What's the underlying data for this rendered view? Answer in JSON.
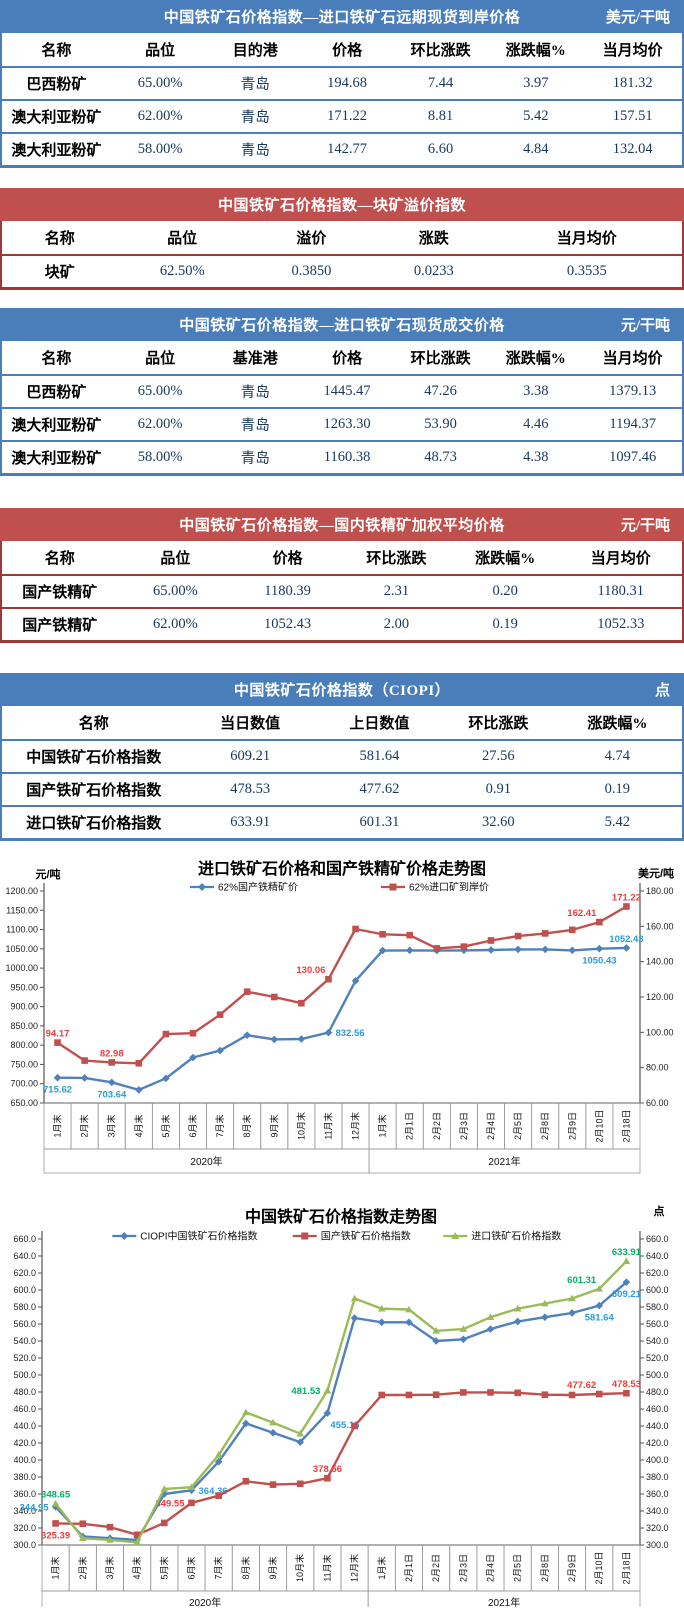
{
  "tables": [
    {
      "title": "中国铁矿石价格指数—进口铁矿石远期现货到岸价格",
      "unit": "美元/干吨",
      "theme": "blue",
      "headers": [
        "名称",
        "品位",
        "目的港",
        "价格",
        "环比涨跌",
        "涨跌幅%",
        "当月均价"
      ],
      "rows": [
        [
          "巴西粉矿",
          "65.00%",
          "青岛",
          "194.68",
          "7.44",
          "3.97",
          "181.32"
        ],
        [
          "澳大利亚粉矿",
          "62.00%",
          "青岛",
          "171.22",
          "8.81",
          "5.42",
          "157.51"
        ],
        [
          "澳大利亚粉矿",
          "58.00%",
          "青岛",
          "142.77",
          "6.60",
          "4.84",
          "132.04"
        ]
      ]
    },
    {
      "title": "中国铁矿石价格指数—块矿溢价指数",
      "unit": "",
      "theme": "red",
      "headers": [
        "名称",
        "品位",
        "溢价",
        "涨跌",
        "当月均价"
      ],
      "rows": [
        [
          "块矿",
          "62.50%",
          "0.3850",
          "0.0233",
          "0.3535"
        ]
      ]
    },
    {
      "title": "中国铁矿石价格指数—进口铁矿石现货成交价格",
      "unit": "元/干吨",
      "theme": "blue",
      "headers": [
        "名称",
        "品位",
        "基准港",
        "价格",
        "环比涨跌",
        "涨跌幅%",
        "当月均价"
      ],
      "rows": [
        [
          "巴西粉矿",
          "65.00%",
          "青岛",
          "1445.47",
          "47.26",
          "3.38",
          "1379.13"
        ],
        [
          "澳大利亚粉矿",
          "62.00%",
          "青岛",
          "1263.30",
          "53.90",
          "4.46",
          "1194.37"
        ],
        [
          "澳大利亚粉矿",
          "58.00%",
          "青岛",
          "1160.38",
          "48.73",
          "4.38",
          "1097.46"
        ]
      ]
    },
    {
      "title": "中国铁矿石价格指数—国内铁精矿加权平均价格",
      "unit": "元/干吨",
      "theme": "red",
      "headers": [
        "名称",
        "品位",
        "价格",
        "环比涨跌",
        "涨跌幅%",
        "当月均价"
      ],
      "rows": [
        [
          "国产铁精矿",
          "65.00%",
          "1180.39",
          "2.31",
          "0.20",
          "1180.31"
        ],
        [
          "国产铁精矿",
          "62.00%",
          "1052.43",
          "2.00",
          "0.19",
          "1052.33"
        ]
      ]
    },
    {
      "title": "中国铁矿石价格指数（CIOPI）",
      "unit": "点",
      "theme": "blue",
      "headers": [
        "名称",
        "当日数值",
        "上日数值",
        "环比涨跌",
        "涨跌幅%"
      ],
      "rows": [
        [
          "中国铁矿石价格指数",
          "609.21",
          "581.64",
          "27.56",
          "4.74"
        ],
        [
          "国产铁矿石价格指数",
          "478.53",
          "477.62",
          "0.91",
          "0.19"
        ],
        [
          "进口铁矿石价格指数",
          "633.91",
          "601.31",
          "32.60",
          "5.42"
        ]
      ]
    }
  ],
  "chart_data": [
    {
      "type": "line",
      "title": "进口铁矿石价格和国产铁精矿价格走势图",
      "left_axis": {
        "label": "元/吨",
        "min": 650,
        "max": 1200,
        "step": 50,
        "decimals": 2
      },
      "right_axis": {
        "label": "美元/吨",
        "min": 60,
        "max": 180,
        "step": 20,
        "decimals": 2
      },
      "categories": [
        "1月末",
        "2月末",
        "3月末",
        "4月末",
        "5月末",
        "6月末",
        "7月末",
        "8月末",
        "9月末",
        "10月末",
        "11月末",
        "12月末",
        "1月末",
        "2月1日",
        "2月2日",
        "2月3日",
        "2月4日",
        "2月5日",
        "2月8日",
        "2月9日",
        "2月10日",
        "2月18日"
      ],
      "year_groups": [
        {
          "label": "2020年",
          "span": 12
        },
        {
          "label": "2021年",
          "span": 10
        }
      ],
      "grid": false,
      "legend_position": "top",
      "series": [
        {
          "name": "62%国产铁精矿价",
          "color": "#4F81BD",
          "label_color": "#2E9BD6",
          "marker": "diamond",
          "axis": "left",
          "values": [
            715.62,
            715.0,
            703.64,
            684.0,
            714.0,
            768.0,
            786.0,
            826.0,
            815.0,
            816.0,
            832.56,
            967.0,
            1045.5,
            1046.0,
            1045.5,
            1046.0,
            1047.0,
            1048.5,
            1048.5,
            1046.0,
            1050.43,
            1052.43
          ],
          "labels": [
            {
              "i": 0,
              "t": "715.62",
              "pos": "below"
            },
            {
              "i": 2,
              "t": "703.64",
              "pos": "below"
            },
            {
              "i": 10,
              "t": "832.56",
              "pos": "right"
            },
            {
              "i": 20,
              "t": "1050.43",
              "pos": "below"
            },
            {
              "i": 21,
              "t": "1052.43",
              "pos": "above"
            }
          ]
        },
        {
          "name": "62%进口矿到岸价",
          "color": "#C0504D",
          "label_color": "#F03C3C",
          "marker": "square",
          "axis": "right",
          "values": [
            94.17,
            84.0,
            82.98,
            82.5,
            99.0,
            99.5,
            110.0,
            123.0,
            120.0,
            116.5,
            130.06,
            158.5,
            155.5,
            155.0,
            147.5,
            148.5,
            152.0,
            154.5,
            156.0,
            158.0,
            162.41,
            171.22
          ],
          "labels": [
            {
              "i": 0,
              "t": "94.17",
              "pos": "above"
            },
            {
              "i": 2,
              "t": "82.98",
              "pos": "above"
            },
            {
              "i": 10,
              "t": "130.06",
              "pos": "above-left"
            },
            {
              "i": 20,
              "t": "162.41",
              "pos": "above-left"
            },
            {
              "i": 21,
              "t": "171.22",
              "pos": "above"
            }
          ]
        }
      ]
    },
    {
      "type": "line",
      "title": "中国铁矿石价格指数走势图",
      "left_axis": {
        "label": "",
        "min": 300,
        "max": 660,
        "step": 20,
        "decimals": 1
      },
      "right_axis": {
        "label": "点",
        "min": 300,
        "max": 660,
        "step": 20,
        "decimals": 1
      },
      "categories": [
        "1月末",
        "2月末",
        "3月末",
        "4月末",
        "5月末",
        "6月末",
        "7月末",
        "8月末",
        "9月末",
        "10月末",
        "11月末",
        "12月末",
        "1月末",
        "2月1日",
        "2月2日",
        "2月3日",
        "2月4日",
        "2月5日",
        "2月8日",
        "2月9日",
        "2月10日",
        "2月18日"
      ],
      "year_groups": [
        {
          "label": "2020年",
          "span": 12
        },
        {
          "label": "2021年",
          "span": 10
        }
      ],
      "grid": false,
      "legend_position": "top",
      "series": [
        {
          "name": "CIOPI中国铁矿石价格指数",
          "color": "#4F81BD",
          "label_color": "#2E9BD6",
          "marker": "diamond",
          "axis": "left",
          "values": [
            344.95,
            310.0,
            308.0,
            306.0,
            360.0,
            364.36,
            398.0,
            443.0,
            432.0,
            421.0,
            455.15,
            567.0,
            562.0,
            562.0,
            540.0,
            542.0,
            554.0,
            563.0,
            568.0,
            573.0,
            581.64,
            609.21
          ],
          "labels": [
            {
              "i": 0,
              "t": "344.95",
              "pos": "left"
            },
            {
              "i": 5,
              "t": "364.36",
              "pos": "right"
            },
            {
              "i": 10,
              "t": "455.15",
              "pos": "below-right"
            },
            {
              "i": 20,
              "t": "581.64",
              "pos": "below"
            },
            {
              "i": 21,
              "t": "609.21",
              "pos": "below"
            }
          ]
        },
        {
          "name": "国产铁矿石价格指数",
          "color": "#C0504D",
          "label_color": "#F03C3C",
          "marker": "square",
          "axis": "left",
          "values": [
            325.39,
            325.0,
            321.0,
            312.0,
            326.0,
            349.55,
            358.0,
            375.0,
            371.0,
            372.0,
            378.56,
            440.0,
            476.5,
            476.5,
            476.8,
            479.5,
            479.5,
            479.0,
            476.8,
            476.5,
            477.62,
            478.53
          ],
          "labels": [
            {
              "i": 0,
              "t": "325.39",
              "pos": "below"
            },
            {
              "i": 5,
              "t": "349.55",
              "pos": "left"
            },
            {
              "i": 10,
              "t": "378.56",
              "pos": "above"
            },
            {
              "i": 20,
              "t": "477.62",
              "pos": "above-left"
            },
            {
              "i": 21,
              "t": "478.53",
              "pos": "above"
            }
          ]
        },
        {
          "name": "进口铁矿石价格指数",
          "color": "#9BBB59",
          "label_color": "#00B061",
          "marker": "triangle",
          "axis": "left",
          "values": [
            348.65,
            308.0,
            306.0,
            303.0,
            366.0,
            368.0,
            406.0,
            456.0,
            444.0,
            431.0,
            481.53,
            590.0,
            578.0,
            577.0,
            552.0,
            554.0,
            568.0,
            578.0,
            584.0,
            590.0,
            601.31,
            633.91
          ],
          "labels": [
            {
              "i": 0,
              "t": "348.65",
              "pos": "above"
            },
            {
              "i": 10,
              "t": "481.53",
              "pos": "left"
            },
            {
              "i": 20,
              "t": "601.31",
              "pos": "above-left"
            },
            {
              "i": 21,
              "t": "633.91",
              "pos": "above"
            }
          ]
        }
      ]
    }
  ]
}
